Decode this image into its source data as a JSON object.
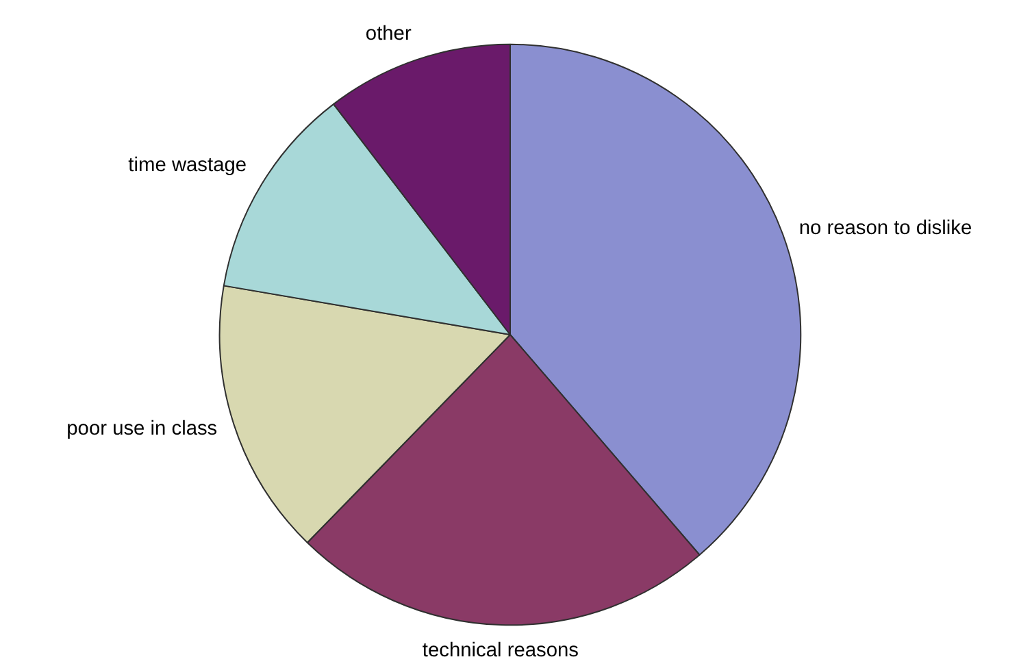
{
  "chart_data": {
    "type": "pie",
    "categories": [
      "no reason to dislike",
      "technical reasons",
      "poor use in class",
      "time wastage",
      "other"
    ],
    "values": [
      38.7,
      23.6,
      15.4,
      11.9,
      10.4
    ],
    "colors": [
      "#8a8fd0",
      "#8a3a66",
      "#d8d8b0",
      "#a8d8d8",
      "#6a1a6a"
    ],
    "legend": false
  }
}
